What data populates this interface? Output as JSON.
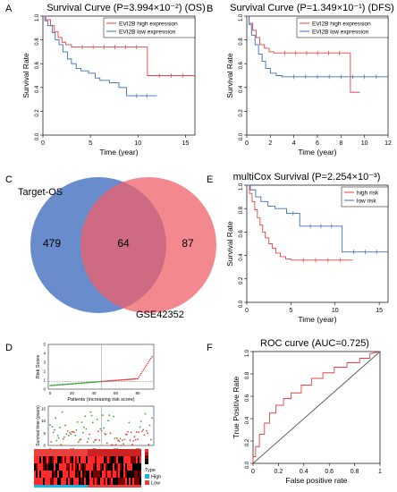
{
  "chart_data": [
    {
      "panel": "A",
      "type": "line",
      "title": "Survival Curve (P=3.994×10⁻²) (OS)",
      "xlabel": "Time (year)",
      "ylabel": "Survival Rate",
      "xlim": [
        0,
        16
      ],
      "ylim": [
        0,
        1
      ],
      "xticks": [
        0,
        5,
        10,
        15
      ],
      "yticks": [
        0.0,
        0.2,
        0.4,
        0.6,
        0.8,
        1.0
      ],
      "legend": "top-right",
      "series": [
        {
          "name": "EVI2B high expression",
          "color": "#e8423f",
          "x": [
            0,
            0.3,
            0.8,
            1.2,
            1.6,
            2.0,
            2.4,
            3.0,
            11.0,
            16.0
          ],
          "values": [
            1.0,
            0.97,
            0.92,
            0.87,
            0.82,
            0.78,
            0.76,
            0.74,
            0.5,
            0.5
          ]
        },
        {
          "name": "EVI2B low expression",
          "color": "#3d6db5",
          "x": [
            0,
            0.2,
            0.5,
            1.0,
            1.3,
            1.7,
            2.1,
            2.6,
            3.0,
            3.5,
            4.0,
            4.8,
            5.5,
            6.0,
            7.0,
            8.0,
            8.8,
            12.0
          ],
          "values": [
            1.0,
            0.96,
            0.92,
            0.86,
            0.8,
            0.76,
            0.7,
            0.64,
            0.6,
            0.56,
            0.54,
            0.52,
            0.48,
            0.46,
            0.44,
            0.4,
            0.33,
            0.33
          ]
        }
      ]
    },
    {
      "panel": "B",
      "type": "line",
      "title": "Survival Curve (P=1.349×10⁻¹) (DFS)",
      "xlabel": "Time (year)",
      "ylabel": "Survival Rate",
      "xlim": [
        0,
        12
      ],
      "ylim": [
        0,
        1
      ],
      "xticks": [
        0,
        2,
        4,
        6,
        8,
        10,
        12
      ],
      "yticks": [
        0.0,
        0.2,
        0.4,
        0.6,
        0.8,
        1.0
      ],
      "legend": "top-right",
      "series": [
        {
          "name": "EVI2B high expression",
          "color": "#e8423f",
          "x": [
            0,
            0.2,
            0.5,
            0.8,
            1.1,
            1.5,
            1.9,
            2.3,
            8.8,
            9.6
          ],
          "values": [
            1.0,
            0.94,
            0.88,
            0.82,
            0.76,
            0.73,
            0.7,
            0.69,
            0.36,
            0.36
          ]
        },
        {
          "name": "EVI2B low expression",
          "color": "#3d6db5",
          "x": [
            0,
            0.2,
            0.4,
            0.7,
            1.0,
            1.3,
            1.6,
            2.0,
            2.5,
            3.0,
            12.0
          ],
          "values": [
            1.0,
            0.93,
            0.84,
            0.76,
            0.68,
            0.62,
            0.56,
            0.52,
            0.5,
            0.49,
            0.49
          ]
        }
      ]
    },
    {
      "panel": "C",
      "type": "venn",
      "sets": [
        {
          "name": "Target-OS",
          "only": 479,
          "color": "#4f79c3"
        },
        {
          "name": "GSE42352",
          "only": 87,
          "color": "#f0606a"
        }
      ],
      "intersection": 64
    },
    {
      "panel": "D",
      "type": "scatter",
      "subpanels": [
        {
          "ylabel": "Risk Score",
          "xlabel": "Patients (increasing risk score)",
          "xticks": [
            0,
            20,
            40,
            60,
            80
          ],
          "yticks": [
            0,
            1,
            2,
            3,
            4,
            5
          ]
        },
        {
          "ylabel": "Survival time (years)",
          "xlabel": "Patients (increasing risk score)",
          "xticks": [
            0,
            20,
            40,
            60,
            80
          ],
          "yticks": [
            0,
            5,
            10,
            15
          ]
        }
      ],
      "heatmap_legend": {
        "title": "Type",
        "items": [
          {
            "label": "High",
            "color": "#19b4e6"
          },
          {
            "label": "Low",
            "color": "#e8423f"
          }
        ]
      }
    },
    {
      "panel": "E",
      "type": "line",
      "title": "multiCox Survival (P=2.254×10⁻³)",
      "xlabel": "Time (year)",
      "ylabel": "Survival Rate",
      "xlim": [
        0,
        16
      ],
      "ylim": [
        0,
        1
      ],
      "xticks": [
        0,
        5,
        10,
        15
      ],
      "yticks": [
        0.0,
        0.2,
        0.4,
        0.6,
        0.8,
        1.0
      ],
      "legend": "top-right",
      "series": [
        {
          "name": "high risk",
          "color": "#e8423f",
          "x": [
            0,
            0.3,
            0.6,
            0.9,
            1.2,
            1.5,
            1.8,
            2.1,
            2.5,
            2.9,
            3.3,
            3.8,
            4.4,
            5.0,
            12.0
          ],
          "values": [
            1.0,
            0.93,
            0.86,
            0.79,
            0.72,
            0.66,
            0.6,
            0.55,
            0.5,
            0.46,
            0.42,
            0.39,
            0.37,
            0.36,
            0.36
          ]
        },
        {
          "name": "low risk",
          "color": "#3d6db5",
          "x": [
            0,
            0.4,
            1.0,
            1.6,
            2.4,
            3.2,
            4.5,
            6.0,
            10.8,
            16.0
          ],
          "values": [
            1.0,
            0.96,
            0.9,
            0.86,
            0.82,
            0.8,
            0.76,
            0.65,
            0.43,
            0.43
          ]
        }
      ]
    },
    {
      "panel": "F",
      "type": "line",
      "title": "ROC curve (AUC=0.725)",
      "xlabel": "False positive rate",
      "ylabel": "True Positive Rate",
      "xlim": [
        0,
        1
      ],
      "ylim": [
        0,
        1
      ],
      "xticks": [
        0.0,
        0.2,
        0.4,
        0.6,
        0.8,
        1.0
      ],
      "yticks": [
        0.0,
        0.2,
        0.4,
        0.6,
        0.8,
        1.0
      ],
      "series": [
        {
          "color": "#e8423f",
          "x": [
            0,
            0,
            0.02,
            0.02,
            0.05,
            0.05,
            0.09,
            0.09,
            0.13,
            0.13,
            0.18,
            0.18,
            0.24,
            0.24,
            0.3,
            0.3,
            0.38,
            0.38,
            0.46,
            0.46,
            0.55,
            0.55,
            0.64,
            0.64,
            0.74,
            0.74,
            0.84,
            0.84,
            0.92,
            0.92,
            1.0
          ],
          "values": [
            0,
            0.06,
            0.06,
            0.15,
            0.15,
            0.26,
            0.26,
            0.36,
            0.36,
            0.45,
            0.45,
            0.52,
            0.52,
            0.58,
            0.58,
            0.63,
            0.63,
            0.7,
            0.7,
            0.76,
            0.76,
            0.81,
            0.81,
            0.86,
            0.86,
            0.9,
            0.9,
            0.94,
            0.94,
            0.98,
            1.0
          ]
        },
        {
          "color": "#555555",
          "x": [
            0,
            1
          ],
          "values": [
            0,
            1
          ]
        }
      ]
    }
  ]
}
